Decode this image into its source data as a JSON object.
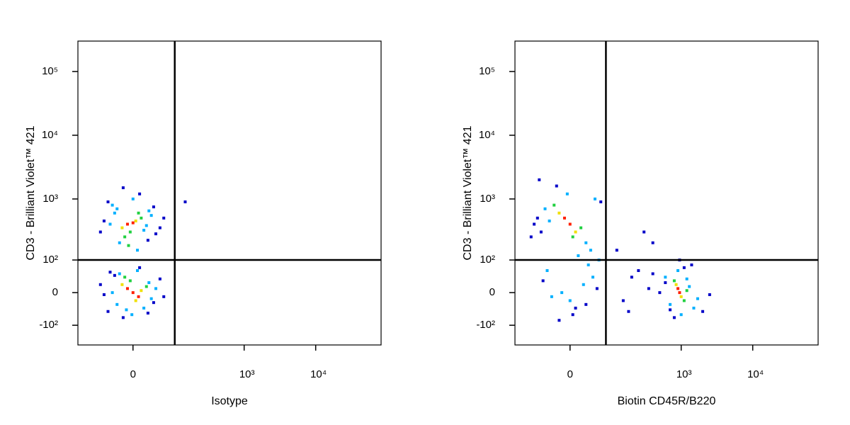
{
  "chart_data": [
    {
      "type": "scatter",
      "scale": "biexponential",
      "x_label": "Isotype",
      "y_label": "CD3 - Brilliant Violet™ 421",
      "xlim": [
        -160,
        82000
      ],
      "ylim": [
        -220,
        300000
      ],
      "xticks": [
        0,
        {
          "value": 1000,
          "label": "10³"
        },
        {
          "value": 10000,
          "label": "10⁴"
        }
      ],
      "yticks": [
        {
          "value": -100,
          "label": "-10²"
        },
        0,
        {
          "value": 100,
          "label": "10²"
        },
        {
          "value": 1000,
          "label": "10³"
        },
        {
          "value": 10000,
          "label": "10⁴"
        },
        {
          "value": 100000,
          "label": "10⁵"
        }
      ],
      "quadrant": {
        "x": 100,
        "y": 100
      },
      "x": [
        -10,
        5,
        -20,
        15,
        0,
        -5,
        10,
        -30,
        25,
        -15,
        20,
        -40,
        35,
        -25,
        30,
        -50,
        45,
        -60,
        55,
        0,
        -8,
        12,
        -35,
        40,
        -70,
        65,
        8,
        -18,
        28,
        -45,
        0,
        -10,
        10,
        -20,
        5,
        -5,
        15,
        -30,
        25,
        -15,
        20,
        -40,
        35,
        -25,
        30,
        -50,
        45,
        -60,
        55,
        -2,
        8,
        -12,
        -35,
        40,
        -70,
        65,
        12,
        -18,
        28,
        -45,
        145
      ],
      "y": [
        400,
        450,
        350,
        500,
        420,
        300,
        600,
        700,
        380,
        250,
        320,
        800,
        550,
        200,
        650,
        900,
        280,
        450,
        350,
        1000,
        180,
        1200,
        600,
        750,
        300,
        500,
        150,
        1500,
        220,
        400,
        0,
        10,
        -10,
        20,
        -20,
        30,
        5,
        -30,
        15,
        40,
        -40,
        0,
        -15,
        50,
        25,
        -50,
        10,
        -5,
        35,
        -60,
        60,
        -45,
        45,
        -25,
        20,
        -10,
        70,
        -70,
        -55,
        55,
        900
      ],
      "colors": [
        "#ff2000",
        "#f0e000",
        "#f0e000",
        "#20d040",
        "#ff2000",
        "#20d040",
        "#20d040",
        "#00b0ff",
        "#00b0ff",
        "#20d040",
        "#00b0ff",
        "#00b0ff",
        "#00b0ff",
        "#00b0ff",
        "#00b0ff",
        "#0000c8",
        "#0000c8",
        "#0000c8",
        "#0000c8",
        "#00b0ff",
        "#20d040",
        "#0000c8",
        "#00b0ff",
        "#0000c8",
        "#0000c8",
        "#0000c8",
        "#00b0ff",
        "#0000c8",
        "#0000c8",
        "#00b0ff",
        "#ff2000",
        "#ff2000",
        "#ff2000",
        "#f0e000",
        "#f0e000",
        "#20d040",
        "#f0e000",
        "#00b0ff",
        "#20d040",
        "#20d040",
        "#00b0ff",
        "#00b0ff",
        "#00b0ff",
        "#00b0ff",
        "#00b0ff",
        "#0000c8",
        "#00b0ff",
        "#0000c8",
        "#0000c8",
        "#00b0ff",
        "#00b0ff",
        "#00b0ff",
        "#0000c8",
        "#0000c8",
        "#0000c8",
        "#0000c8",
        "#0000c8",
        "#0000c8",
        "#0000c8",
        "#0000c8",
        "#0000c8"
      ]
    },
    {
      "type": "scatter",
      "scale": "biexponential",
      "x_label": "Biotin CD45R/B220",
      "y_label": "CD3 - Brilliant Violet™ 421",
      "xlim": [
        -160,
        82000
      ],
      "ylim": [
        -220,
        300000
      ],
      "xticks": [
        0,
        {
          "value": 1000,
          "label": "10³"
        },
        {
          "value": 10000,
          "label": "10⁴"
        }
      ],
      "yticks": [
        {
          "value": -100,
          "label": "-10²"
        },
        0,
        {
          "value": 100,
          "label": "10²"
        },
        {
          "value": 1000,
          "label": "10³"
        },
        {
          "value": 10000,
          "label": "10⁴"
        },
        {
          "value": 100000,
          "label": "10⁵"
        }
      ],
      "quadrant": {
        "x": 80,
        "y": 100
      },
      "x": [
        0,
        -10,
        10,
        -20,
        5,
        -30,
        20,
        -40,
        30,
        -50,
        40,
        -60,
        50,
        -70,
        60,
        -80,
        -5,
        15,
        -25,
        35,
        -45,
        45,
        -90,
        25,
        -15,
        0,
        10,
        -35,
        55,
        -55,
        5,
        -20,
        30,
        -65,
        65,
        950,
        900,
        1000,
        850,
        1100,
        800,
        1200,
        700,
        1300,
        600,
        1500,
        500,
        1700,
        400,
        2000,
        900,
        1000,
        1100,
        800,
        1200,
        700,
        1400,
        600,
        2500,
        950,
        120,
        200,
        300,
        150,
        250,
        400,
        180,
        350
      ],
      "y": [
        400,
        500,
        300,
        600,
        250,
        800,
        350,
        450,
        200,
        700,
        150,
        300,
        1000,
        500,
        100,
        400,
        1200,
        120,
        1600,
        80,
        60,
        40,
        250,
        20,
        0,
        -20,
        -40,
        -10,
        10,
        30,
        -60,
        -80,
        -30,
        2000,
        900,
        0,
        10,
        -10,
        20,
        -20,
        30,
        5,
        -30,
        15,
        40,
        -40,
        0,
        -15,
        50,
        -50,
        60,
        -60,
        70,
        -70,
        35,
        -45,
        80,
        25,
        -5,
        100,
        150,
        40,
        300,
        -20,
        60,
        200,
        -50,
        10
      ],
      "colors": [
        "#ff2000",
        "#ff2000",
        "#f0e000",
        "#f0e000",
        "#20d040",
        "#20d040",
        "#20d040",
        "#00b0ff",
        "#00b0ff",
        "#00b0ff",
        "#00b0ff",
        "#0000c8",
        "#00b0ff",
        "#0000c8",
        "#00b0ff",
        "#0000c8",
        "#00b0ff",
        "#00b0ff",
        "#0000c8",
        "#00b0ff",
        "#00b0ff",
        "#00b0ff",
        "#0000c8",
        "#00b0ff",
        "#00b0ff",
        "#00b0ff",
        "#0000c8",
        "#00b0ff",
        "#0000c8",
        "#0000c8",
        "#0000c8",
        "#0000c8",
        "#0000c8",
        "#0000c8",
        "#0000c8",
        "#ff2000",
        "#ff2000",
        "#f0e000",
        "#f0e000",
        "#20d040",
        "#20d040",
        "#20d040",
        "#00b0ff",
        "#00b0ff",
        "#00b0ff",
        "#00b0ff",
        "#0000c8",
        "#00b0ff",
        "#0000c8",
        "#0000c8",
        "#00b0ff",
        "#00b0ff",
        "#0000c8",
        "#0000c8",
        "#00b0ff",
        "#0000c8",
        "#0000c8",
        "#0000c8",
        "#0000c8",
        "#0000c8",
        "#0000c8",
        "#0000c8",
        "#0000c8",
        "#0000c8",
        "#0000c8",
        "#0000c8",
        "#0000c8",
        "#0000c8"
      ]
    }
  ]
}
